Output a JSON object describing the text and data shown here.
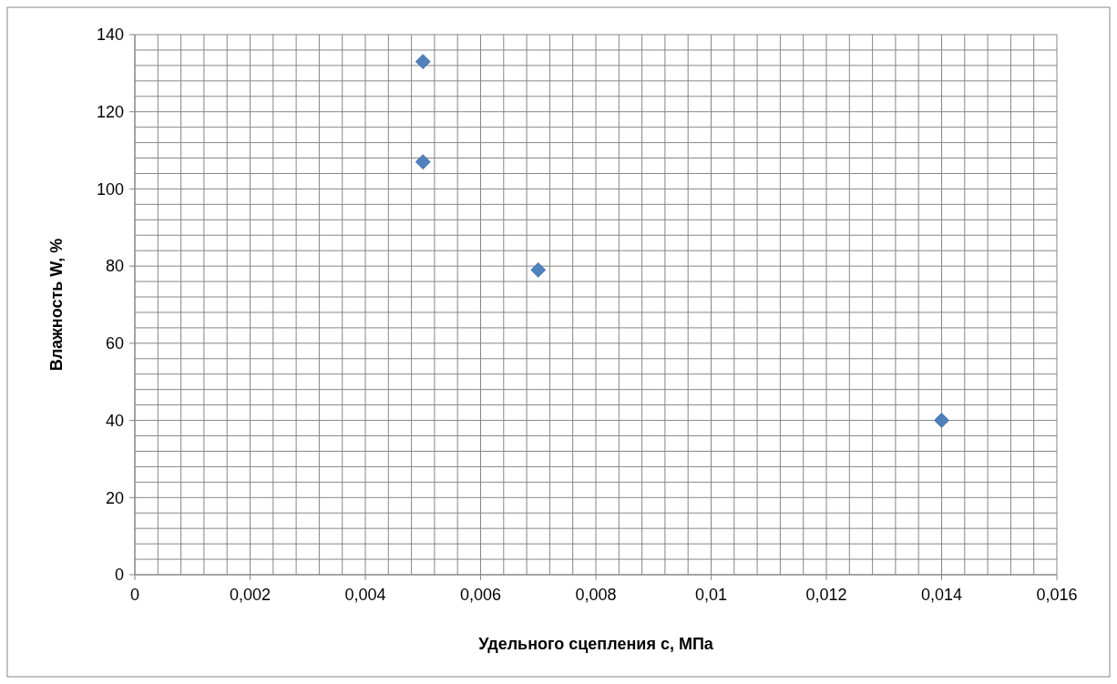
{
  "chart_data": {
    "type": "scatter",
    "xlabel": "Удельного сцепления с, МПа",
    "ylabel": "Влажность W,  %",
    "x": [
      0.005,
      0.005,
      0.007,
      0.014
    ],
    "series": [
      {
        "color": "#4f81bd",
        "values": [
          133,
          107,
          79,
          40
        ]
      }
    ],
    "marker": "diamond",
    "grid": true,
    "xlim": [
      0,
      0.016
    ],
    "ylim": [
      0,
      140
    ],
    "xticks": [
      0,
      {
        "value": 0.0004,
        "label": null
      },
      {
        "value": 0.0008,
        "label": null
      },
      {
        "value": 0.0012,
        "label": null
      },
      {
        "value": 0.0016,
        "label": null
      },
      {
        "value": 0.002,
        "label": "0,002"
      },
      {
        "value": 0.0024,
        "label": null
      },
      {
        "value": 0.0028,
        "label": null
      },
      {
        "value": 0.0032,
        "label": null
      },
      {
        "value": 0.0036,
        "label": null
      },
      {
        "value": 0.004,
        "label": "0,004"
      },
      {
        "value": 0.0044,
        "label": null
      },
      {
        "value": 0.0048,
        "label": null
      },
      {
        "value": 0.0052,
        "label": null
      },
      {
        "value": 0.0056,
        "label": null
      },
      {
        "value": 0.006,
        "label": "0,006"
      },
      {
        "value": 0.0064,
        "label": null
      },
      {
        "value": 0.0068,
        "label": null
      },
      {
        "value": 0.0072,
        "label": null
      },
      {
        "value": 0.0076,
        "label": null
      },
      {
        "value": 0.008,
        "label": "0,008"
      },
      {
        "value": 0.0084,
        "label": null
      },
      {
        "value": 0.0088,
        "label": null
      },
      {
        "value": 0.0092,
        "label": null
      },
      {
        "value": 0.0096,
        "label": null
      },
      {
        "value": 0.01,
        "label": "0,01"
      },
      {
        "value": 0.0104,
        "label": null
      },
      {
        "value": 0.0108,
        "label": null
      },
      {
        "value": 0.0112,
        "label": null
      },
      {
        "value": 0.0116,
        "label": null
      },
      {
        "value": 0.012,
        "label": "0,012"
      },
      {
        "value": 0.0124,
        "label": null
      },
      {
        "value": 0.0128,
        "label": null
      },
      {
        "value": 0.0132,
        "label": null
      },
      {
        "value": 0.0136,
        "label": null
      },
      {
        "value": 0.014,
        "label": "0,014"
      },
      {
        "value": 0.0144,
        "label": null
      },
      {
        "value": 0.0148,
        "label": null
      },
      {
        "value": 0.0152,
        "label": null
      },
      {
        "value": 0.0156,
        "label": null
      },
      {
        "value": 0.016,
        "label": "0,016"
      }
    ],
    "yticks": [
      0,
      {
        "value": 4,
        "label": null
      },
      {
        "value": 8,
        "label": null
      },
      {
        "value": 12,
        "label": null
      },
      {
        "value": 16,
        "label": null
      },
      20,
      {
        "value": 24,
        "label": null
      },
      {
        "value": 28,
        "label": null
      },
      {
        "value": 32,
        "label": null
      },
      {
        "value": 36,
        "label": null
      },
      40,
      {
        "value": 44,
        "label": null
      },
      {
        "value": 48,
        "label": null
      },
      {
        "value": 52,
        "label": null
      },
      {
        "value": 56,
        "label": null
      },
      60,
      {
        "value": 64,
        "label": null
      },
      {
        "value": 68,
        "label": null
      },
      {
        "value": 72,
        "label": null
      },
      {
        "value": 76,
        "label": null
      },
      80,
      {
        "value": 84,
        "label": null
      },
      {
        "value": 88,
        "label": null
      },
      {
        "value": 92,
        "label": null
      },
      {
        "value": 96,
        "label": null
      },
      100,
      {
        "value": 104,
        "label": null
      },
      {
        "value": 108,
        "label": null
      },
      {
        "value": 112,
        "label": null
      },
      {
        "value": 116,
        "label": null
      },
      120,
      {
        "value": 124,
        "label": null
      },
      {
        "value": 128,
        "label": null
      },
      {
        "value": 132,
        "label": null
      },
      {
        "value": 136,
        "label": null
      },
      140
    ]
  }
}
